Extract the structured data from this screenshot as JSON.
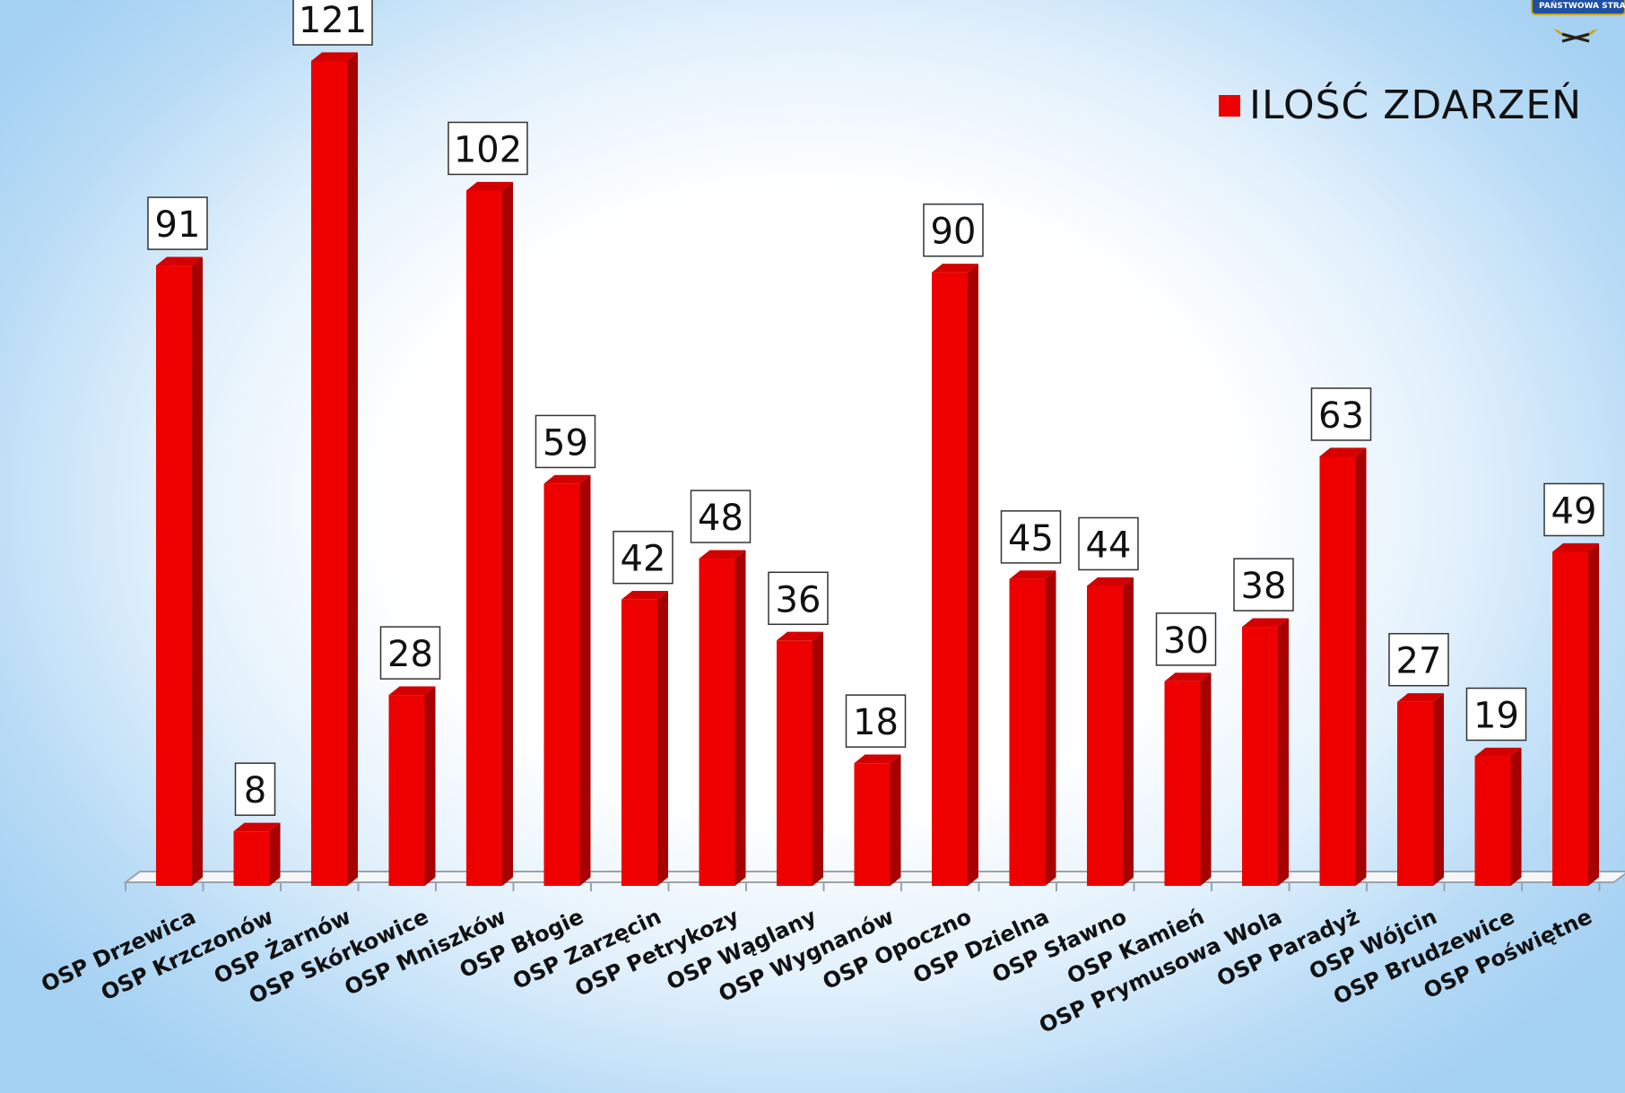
{
  "legend": {
    "label": "ILOŚĆ ZDARZEŃ"
  },
  "logo": {
    "text": "PAŃSTWOWA STRAŻ POŻA"
  },
  "colors": {
    "bar_front": "#ee0000",
    "bar_side": "#a60000",
    "bar_top": "#d40000",
    "axis": "#9aa3ad"
  },
  "chart_data": {
    "type": "bar",
    "style": "3d-column",
    "categories": [
      "OSP Drzewica",
      "OSP Krzczonów",
      "OSP Żarnów",
      "OSP Skórkowice",
      "OSP Mniszków",
      "OSP Błogie",
      "OSP Zarzęcin",
      "OSP Petrykozy",
      "OSP Wąglany",
      "OSP Wygnanów",
      "OSP Opoczno",
      "OSP Dzielna",
      "OSP Sławno",
      "OSP Kamień",
      "OSP Prymusowa Wola",
      "OSP Paradyż",
      "OSP Wójcin",
      "OSP Brudzewice",
      "OSP Poświętne"
    ],
    "series": [
      {
        "name": "ILOŚĆ ZDARZEŃ",
        "values": [
          91,
          8,
          121,
          28,
          102,
          59,
          42,
          48,
          36,
          18,
          90,
          45,
          44,
          30,
          38,
          63,
          27,
          19,
          49
        ]
      }
    ],
    "ylim": [
      0,
      121
    ],
    "data_labels": true,
    "grid": false,
    "legend_position": "top-right"
  }
}
